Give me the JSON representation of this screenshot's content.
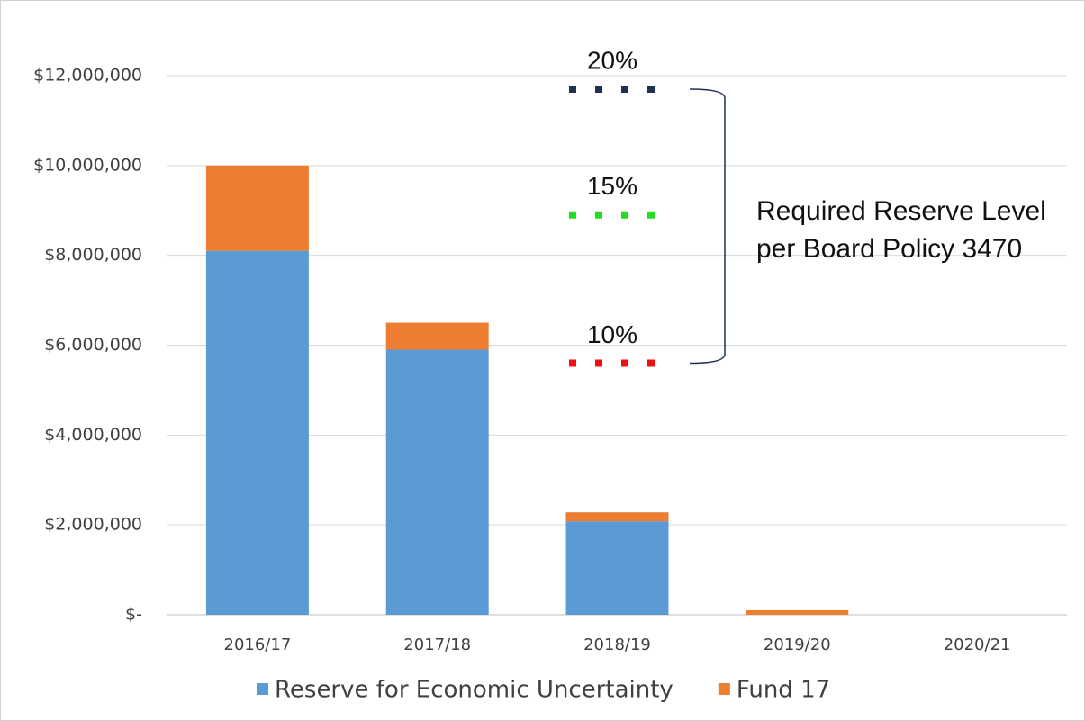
{
  "chart_data": {
    "type": "stacked_bar",
    "categories": [
      "2016/17",
      "2017/18",
      "2018/19",
      "2019/20",
      "2020/21"
    ],
    "series": [
      {
        "name": "Reserve for Economic Uncertainty",
        "color": "#5b9bd5",
        "values": [
          8100000,
          5900000,
          2080000,
          0,
          0
        ]
      },
      {
        "name": "Fund 17",
        "color": "#ed7d31",
        "values": [
          1900000,
          600000,
          200000,
          100000,
          0
        ]
      }
    ],
    "ylim": [
      0,
      12000000
    ],
    "yticks": [
      {
        "value": 0,
        "label": "$-"
      },
      {
        "value": 2000000,
        "label": "$2,000,000"
      },
      {
        "value": 4000000,
        "label": "$4,000,000"
      },
      {
        "value": 6000000,
        "label": "$6,000,000"
      },
      {
        "value": 8000000,
        "label": "$8,000,000"
      },
      {
        "value": 10000000,
        "label": "$10,000,000"
      },
      {
        "value": 12000000,
        "label": "$12,000,000"
      }
    ],
    "grid": true,
    "legend": "bottom",
    "reserve_levels": [
      {
        "label": "20%",
        "value": 11700000,
        "color": "#1f3050"
      },
      {
        "label": "15%",
        "value": 8900000,
        "color": "#22dd22"
      },
      {
        "label": "10%",
        "value": 5600000,
        "color": "#ee1111"
      }
    ],
    "annotation": "Required Reserve Level per Board Policy 3470"
  }
}
